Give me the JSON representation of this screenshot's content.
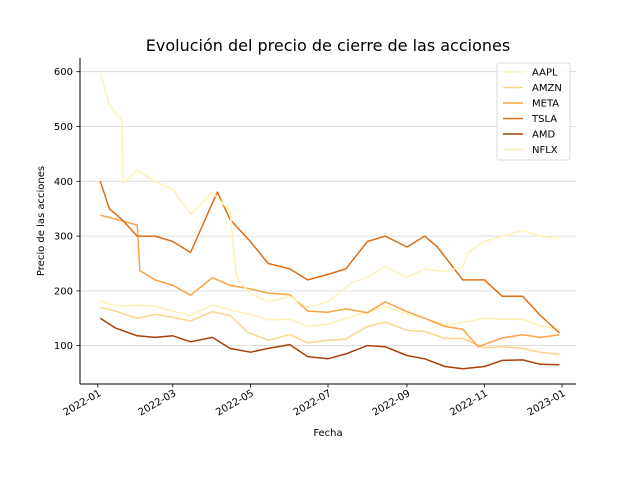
{
  "chart_data": {
    "type": "line",
    "title": "Evolución del precio de cierre de las acciones",
    "xlabel": "Fecha",
    "ylabel": "Precio de las acciones",
    "x_ticks": [
      "2022-01",
      "2022-03",
      "2022-05",
      "2022-07",
      "2022-09",
      "2022-11",
      "2023-01"
    ],
    "y_ticks": [
      100,
      200,
      300,
      400,
      500,
      600
    ],
    "xlim": [
      "2021-12-18",
      "2023-01-12"
    ],
    "ylim": [
      30,
      625
    ],
    "grid": "horizontal",
    "legend_position": "top-right",
    "series": [
      {
        "name": "AAPL",
        "color": "#fff2b8",
        "points": [
          [
            "2022-01-03",
            182
          ],
          [
            "2022-01-15",
            172
          ],
          [
            "2022-02-01",
            174
          ],
          [
            "2022-02-15",
            172
          ],
          [
            "2022-03-01",
            163
          ],
          [
            "2022-03-15",
            155
          ],
          [
            "2022-04-01",
            174
          ],
          [
            "2022-04-15",
            165
          ],
          [
            "2022-05-01",
            157
          ],
          [
            "2022-05-15",
            147
          ],
          [
            "2022-06-01",
            148
          ],
          [
            "2022-06-15",
            135
          ],
          [
            "2022-07-01",
            139
          ],
          [
            "2022-07-15",
            150
          ],
          [
            "2022-08-01",
            161
          ],
          [
            "2022-08-15",
            172
          ],
          [
            "2022-09-01",
            157
          ],
          [
            "2022-09-15",
            150
          ],
          [
            "2022-10-01",
            138
          ],
          [
            "2022-10-15",
            142
          ],
          [
            "2022-11-01",
            150
          ],
          [
            "2022-11-15",
            148
          ],
          [
            "2022-12-01",
            148
          ],
          [
            "2022-12-15",
            136
          ],
          [
            "2022-12-30",
            130
          ]
        ]
      },
      {
        "name": "AMZN",
        "color": "#fdd48a",
        "points": [
          [
            "2022-01-03",
            170
          ],
          [
            "2022-01-15",
            163
          ],
          [
            "2022-02-01",
            150
          ],
          [
            "2022-02-15",
            157
          ],
          [
            "2022-03-01",
            152
          ],
          [
            "2022-03-15",
            145
          ],
          [
            "2022-04-01",
            162
          ],
          [
            "2022-04-15",
            155
          ],
          [
            "2022-04-29",
            124
          ],
          [
            "2022-05-15",
            110
          ],
          [
            "2022-06-01",
            120
          ],
          [
            "2022-06-15",
            105
          ],
          [
            "2022-07-01",
            110
          ],
          [
            "2022-07-15",
            112
          ],
          [
            "2022-08-01",
            135
          ],
          [
            "2022-08-15",
            143
          ],
          [
            "2022-09-01",
            128
          ],
          [
            "2022-09-15",
            126
          ],
          [
            "2022-10-01",
            113
          ],
          [
            "2022-10-15",
            113
          ],
          [
            "2022-11-01",
            96
          ],
          [
            "2022-11-15",
            98
          ],
          [
            "2022-12-01",
            95
          ],
          [
            "2022-12-15",
            88
          ],
          [
            "2022-12-30",
            84
          ]
        ]
      },
      {
        "name": "META",
        "color": "#fba245",
        "points": [
          [
            "2022-01-03",
            338
          ],
          [
            "2022-01-15",
            331
          ],
          [
            "2022-02-01",
            320
          ],
          [
            "2022-02-03",
            237
          ],
          [
            "2022-02-15",
            220
          ],
          [
            "2022-03-01",
            210
          ],
          [
            "2022-03-15",
            192
          ],
          [
            "2022-04-01",
            224
          ],
          [
            "2022-04-15",
            210
          ],
          [
            "2022-04-28",
            205
          ],
          [
            "2022-05-15",
            196
          ],
          [
            "2022-06-01",
            193
          ],
          [
            "2022-06-15",
            163
          ],
          [
            "2022-07-01",
            161
          ],
          [
            "2022-07-15",
            167
          ],
          [
            "2022-08-01",
            160
          ],
          [
            "2022-08-15",
            180
          ],
          [
            "2022-09-01",
            162
          ],
          [
            "2022-09-15",
            150
          ],
          [
            "2022-10-01",
            135
          ],
          [
            "2022-10-15",
            130
          ],
          [
            "2022-10-27",
            98
          ],
          [
            "2022-11-15",
            114
          ],
          [
            "2022-12-01",
            120
          ],
          [
            "2022-12-15",
            115
          ],
          [
            "2022-12-30",
            120
          ]
        ]
      },
      {
        "name": "TSLA",
        "color": "#e06e14",
        "points": [
          [
            "2022-01-03",
            400
          ],
          [
            "2022-01-10",
            350
          ],
          [
            "2022-01-20",
            330
          ],
          [
            "2022-02-01",
            300
          ],
          [
            "2022-02-15",
            300
          ],
          [
            "2022-03-01",
            290
          ],
          [
            "2022-03-15",
            270
          ],
          [
            "2022-04-01",
            360
          ],
          [
            "2022-04-05",
            380
          ],
          [
            "2022-04-15",
            330
          ],
          [
            "2022-05-01",
            290
          ],
          [
            "2022-05-15",
            250
          ],
          [
            "2022-06-01",
            240
          ],
          [
            "2022-06-15",
            220
          ],
          [
            "2022-07-01",
            230
          ],
          [
            "2022-07-15",
            240
          ],
          [
            "2022-08-01",
            290
          ],
          [
            "2022-08-15",
            300
          ],
          [
            "2022-09-01",
            280
          ],
          [
            "2022-09-15",
            300
          ],
          [
            "2022-09-25",
            280
          ],
          [
            "2022-10-15",
            220
          ],
          [
            "2022-11-01",
            220
          ],
          [
            "2022-11-15",
            190
          ],
          [
            "2022-12-01",
            190
          ],
          [
            "2022-12-15",
            155
          ],
          [
            "2022-12-30",
            123
          ]
        ]
      },
      {
        "name": "AMD",
        "color": "#a93f0c",
        "points": [
          [
            "2022-01-03",
            150
          ],
          [
            "2022-01-15",
            132
          ],
          [
            "2022-02-01",
            118
          ],
          [
            "2022-02-15",
            115
          ],
          [
            "2022-03-01",
            118
          ],
          [
            "2022-03-15",
            107
          ],
          [
            "2022-04-01",
            115
          ],
          [
            "2022-04-15",
            95
          ],
          [
            "2022-05-01",
            88
          ],
          [
            "2022-05-15",
            95
          ],
          [
            "2022-06-01",
            102
          ],
          [
            "2022-06-15",
            80
          ],
          [
            "2022-07-01",
            76
          ],
          [
            "2022-07-15",
            85
          ],
          [
            "2022-08-01",
            100
          ],
          [
            "2022-08-15",
            98
          ],
          [
            "2022-09-01",
            82
          ],
          [
            "2022-09-15",
            76
          ],
          [
            "2022-10-01",
            62
          ],
          [
            "2022-10-15",
            58
          ],
          [
            "2022-11-01",
            62
          ],
          [
            "2022-11-15",
            73
          ],
          [
            "2022-12-01",
            74
          ],
          [
            "2022-12-15",
            66
          ],
          [
            "2022-12-30",
            65
          ]
        ]
      },
      {
        "name": "NFLX",
        "color": "#fff2b8",
        "points": [
          [
            "2022-01-03",
            597
          ],
          [
            "2022-01-10",
            540
          ],
          [
            "2022-01-20",
            510
          ],
          [
            "2022-01-21",
            397
          ],
          [
            "2022-02-01",
            420
          ],
          [
            "2022-02-15",
            400
          ],
          [
            "2022-03-01",
            385
          ],
          [
            "2022-03-15",
            340
          ],
          [
            "2022-04-01",
            380
          ],
          [
            "2022-04-15",
            345
          ],
          [
            "2022-04-20",
            225
          ],
          [
            "2022-05-01",
            195
          ],
          [
            "2022-05-15",
            180
          ],
          [
            "2022-06-01",
            190
          ],
          [
            "2022-06-15",
            170
          ],
          [
            "2022-07-01",
            180
          ],
          [
            "2022-07-20",
            215
          ],
          [
            "2022-08-01",
            225
          ],
          [
            "2022-08-15",
            245
          ],
          [
            "2022-09-01",
            225
          ],
          [
            "2022-09-15",
            240
          ],
          [
            "2022-10-01",
            235
          ],
          [
            "2022-10-15",
            245
          ],
          [
            "2022-10-19",
            270
          ],
          [
            "2022-11-01",
            290
          ],
          [
            "2022-11-15",
            300
          ],
          [
            "2022-12-01",
            310
          ],
          [
            "2022-12-15",
            300
          ],
          [
            "2022-12-30",
            295
          ]
        ]
      }
    ]
  }
}
